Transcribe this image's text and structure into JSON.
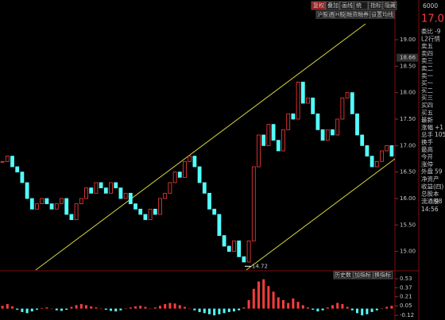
{
  "chart_data": {
    "type": "candlestick",
    "closes": [
      16.7,
      16.8,
      16.6,
      16.5,
      16.3,
      16.0,
      15.8,
      15.9,
      16.0,
      15.9,
      15.8,
      15.9,
      16.0,
      15.7,
      15.6,
      15.9,
      16.0,
      16.2,
      16.1,
      16.3,
      16.2,
      16.1,
      16.3,
      16.2,
      16.0,
      16.1,
      15.9,
      15.8,
      15.7,
      15.6,
      15.8,
      15.7,
      16.0,
      16.1,
      16.3,
      16.5,
      16.4,
      16.7,
      16.8,
      16.6,
      16.3,
      16.1,
      15.8,
      15.7,
      15.3,
      15.1,
      15.0,
      15.2,
      14.9,
      14.8,
      15.2,
      16.6,
      17.2,
      17.0,
      17.4,
      17.1,
      16.9,
      17.3,
      17.6,
      17.5,
      18.2,
      17.8,
      17.9,
      17.6,
      17.3,
      17.1,
      17.3,
      17.2,
      17.5,
      17.9,
      18.0,
      17.6,
      17.2,
      17.0,
      16.8,
      16.6,
      16.7,
      16.9,
      17.0,
      16.8
    ],
    "up_color": "#ff3c3c",
    "down_color": "#54ffff",
    "ylim": [
      14.65,
      19.6
    ],
    "yticks": [
      {
        "value": 19,
        "label": "19.00"
      },
      {
        "value": 18.5,
        "label": "18.50"
      },
      {
        "value": 18,
        "label": "18.00"
      },
      {
        "value": 17.5,
        "label": "17.50"
      },
      {
        "value": 17,
        "label": "17.00"
      },
      {
        "value": 16.5,
        "label": "16.50"
      },
      {
        "value": 16,
        "label": "16.00"
      },
      {
        "value": 15.5,
        "label": "15.50"
      },
      {
        "value": 15,
        "label": "15.00"
      }
    ],
    "price_marker": {
      "value": 18.66,
      "label": "18.66"
    },
    "low_label": "14.72",
    "low_value": 14.72,
    "macd": {
      "values": [
        0.05,
        0.08,
        0.04,
        -0.02,
        -0.06,
        -0.08,
        -0.05,
        -0.02,
        0.01,
        0.02,
        0.0,
        -0.03,
        -0.04,
        -0.02,
        0.03,
        0.06,
        0.08,
        0.06,
        0.04,
        0.02,
        0.0,
        -0.02,
        -0.04,
        -0.05,
        -0.03,
        0.0,
        0.02,
        0.04,
        0.05,
        0.03,
        0.0,
        0.02,
        0.05,
        0.08,
        0.1,
        0.09,
        0.06,
        0.03,
        0.0,
        -0.03,
        -0.06,
        -0.08,
        -0.1,
        -0.12,
        -0.1,
        -0.08,
        -0.06,
        -0.05,
        -0.03,
        0.02,
        0.15,
        0.35,
        0.48,
        0.52,
        0.4,
        0.3,
        0.2,
        0.15,
        0.1,
        0.18,
        0.12,
        0.06,
        0.02,
        -0.02,
        -0.05,
        -0.03,
        0.02,
        0.06,
        0.1,
        0.08,
        0.03,
        -0.03,
        -0.08,
        -0.12,
        -0.1,
        -0.06,
        -0.03,
        0.0,
        0.03,
        0.05
      ],
      "ylim": [
        -0.16,
        0.6
      ],
      "yticks": [
        0.53,
        0.37,
        0.21,
        0.05,
        -0.12
      ]
    }
  },
  "toolbar": {
    "row1": [
      "复权",
      "叠加",
      "画线",
      "统",
      "指标",
      "隐藏"
    ],
    "row2": [
      "沪股通",
      "H股",
      "融资融券",
      "设置均线"
    ],
    "indicator_buttons": [
      "历史数",
      "加指标",
      "换指标"
    ]
  },
  "sidebar": {
    "code": "6000",
    "price": "17.0",
    "time": "14:56",
    "rows": [
      [
        "委比",
        "-9"
      ],
      [
        "L2行情",
        ""
      ],
      [
        "卖五",
        ""
      ],
      [
        "卖四",
        ""
      ],
      [
        "卖三",
        ""
      ],
      [
        "卖二",
        ""
      ],
      [
        "卖一",
        ""
      ],
      [
        "买一",
        ""
      ],
      [
        "买二",
        ""
      ],
      [
        "买三",
        ""
      ],
      [
        "买四",
        ""
      ],
      [
        "买五",
        ""
      ],
      [
        "最新",
        ""
      ],
      [
        "涨幅",
        "+1"
      ],
      [
        "总手",
        "105"
      ],
      [
        "换手",
        ""
      ],
      [
        "最高",
        ""
      ],
      [
        "今开",
        ""
      ],
      [
        "涨停",
        ""
      ],
      [
        "外盘",
        "59"
      ],
      [
        "净资产",
        ""
      ],
      [
        "收益(四)",
        ""
      ],
      [
        "总股本",
        ""
      ],
      [
        "流通股",
        "98"
      ]
    ]
  }
}
